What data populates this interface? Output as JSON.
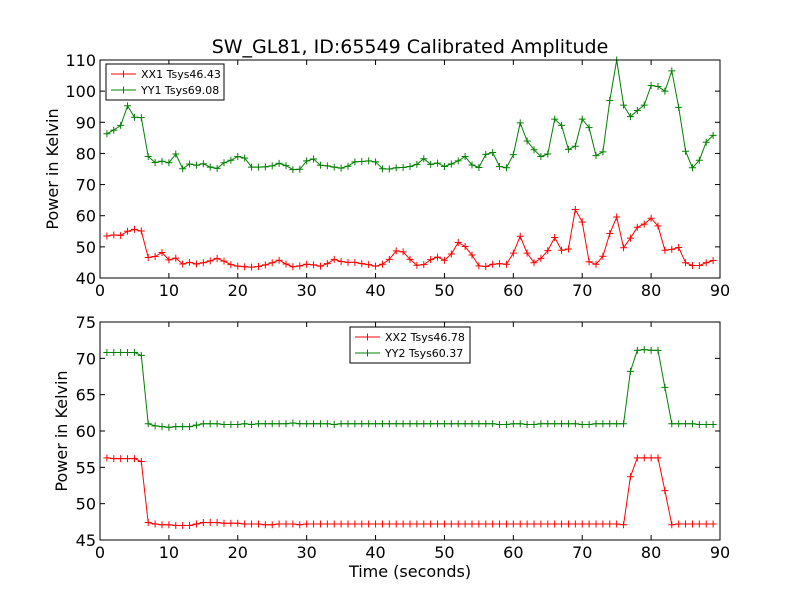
{
  "chart_data": [
    {
      "type": "line",
      "title": "SW_GL81, ID:65549 Calibrated Amplitude",
      "xlabel": "",
      "ylabel": "Power in Kelvin",
      "xlim": [
        0,
        90
      ],
      "ylim": [
        40,
        110
      ],
      "xticks": [
        "0",
        "10",
        "20",
        "30",
        "40",
        "50",
        "60",
        "70",
        "80",
        "90"
      ],
      "yticks": [
        "40",
        "50",
        "60",
        "70",
        "80",
        "90",
        "100",
        "110"
      ],
      "grid": false,
      "legend_position": "top-left",
      "x": [
        1,
        2,
        3,
        4,
        5,
        6,
        7,
        8,
        9,
        10,
        11,
        12,
        13,
        14,
        15,
        16,
        17,
        18,
        19,
        20,
        21,
        22,
        23,
        24,
        25,
        26,
        27,
        28,
        29,
        30,
        31,
        32,
        33,
        34,
        35,
        36,
        37,
        38,
        39,
        40,
        41,
        42,
        43,
        44,
        45,
        46,
        47,
        48,
        49,
        50,
        51,
        52,
        53,
        54,
        55,
        56,
        57,
        58,
        59,
        60,
        61,
        62,
        63,
        64,
        65,
        66,
        67,
        68,
        69,
        70,
        71,
        72,
        73,
        74,
        75,
        76,
        77,
        78,
        79,
        80,
        81,
        82,
        83,
        84,
        85,
        86,
        87,
        88,
        89
      ],
      "series": [
        {
          "name": "XX1 Tsys46.43",
          "color": "#ff0000",
          "values": [
            53.5,
            53.8,
            53.7,
            55.0,
            55.6,
            55.1,
            46.6,
            46.9,
            48.2,
            45.8,
            46.4,
            44.5,
            45.0,
            44.5,
            44.9,
            45.5,
            46.3,
            45.4,
            44.3,
            43.8,
            43.6,
            43.5,
            43.7,
            44.2,
            44.9,
            45.7,
            44.5,
            43.6,
            43.9,
            44.4,
            44.2,
            43.8,
            44.6,
            46.0,
            45.3,
            45.0,
            45.0,
            44.6,
            44.3,
            43.8,
            44.4,
            46.0,
            48.7,
            48.4,
            46.0,
            44.1,
            44.3,
            45.9,
            46.7,
            45.7,
            47.7,
            51.4,
            50.1,
            47.4,
            43.9,
            43.7,
            44.4,
            44.6,
            44.4,
            48.0,
            53.4,
            48.0,
            44.9,
            46.3,
            48.8,
            53.0,
            48.9,
            49.3,
            62.0,
            58.0,
            45.2,
            44.4,
            47.0,
            54.3,
            59.6,
            49.7,
            52.8,
            56.3,
            57.3,
            59.2,
            56.7,
            48.9,
            49.2,
            49.8,
            44.9,
            44.0,
            44.0,
            44.9,
            45.6
          ]
        },
        {
          "name": "YY1 Tsys69.08",
          "color": "#008000",
          "values": [
            86.3,
            87.5,
            89.0,
            95.3,
            91.6,
            91.5,
            79.0,
            77.1,
            77.5,
            77.0,
            79.8,
            75.1,
            76.6,
            76.2,
            76.7,
            75.6,
            75.2,
            77.0,
            77.8,
            79.0,
            78.5,
            75.6,
            75.6,
            75.7,
            76.0,
            76.8,
            76.1,
            74.8,
            74.9,
            77.6,
            78.2,
            76.2,
            76.0,
            75.6,
            75.3,
            75.9,
            77.3,
            77.4,
            77.6,
            77.3,
            75.1,
            75.0,
            75.4,
            75.5,
            75.8,
            76.5,
            78.3,
            76.5,
            76.9,
            75.8,
            76.6,
            77.6,
            79.0,
            76.3,
            75.5,
            79.7,
            80.3,
            75.8,
            75.4,
            79.6,
            89.8,
            84.0,
            81.2,
            79.0,
            79.8,
            91.0,
            89.0,
            81.3,
            82.3,
            91.0,
            88.3,
            79.3,
            80.5,
            97.0,
            110.0,
            95.5,
            91.8,
            93.8,
            95.5,
            101.8,
            101.5,
            100.0,
            106.5,
            94.8,
            80.7,
            75.4,
            77.8,
            83.6,
            85.8
          ]
        }
      ]
    },
    {
      "type": "line",
      "title": "",
      "xlabel": "Time (seconds)",
      "ylabel": "Power in Kelvin",
      "xlim": [
        0,
        90
      ],
      "ylim": [
        45,
        75
      ],
      "xticks": [
        "0",
        "10",
        "20",
        "30",
        "40",
        "50",
        "60",
        "70",
        "80",
        "90"
      ],
      "yticks": [
        "45",
        "50",
        "55",
        "60",
        "65",
        "70",
        "75"
      ],
      "grid": false,
      "legend_position": "top-center",
      "x": [
        1,
        2,
        3,
        4,
        5,
        6,
        7,
        8,
        9,
        10,
        11,
        12,
        13,
        14,
        15,
        16,
        17,
        18,
        19,
        20,
        21,
        22,
        23,
        24,
        25,
        26,
        27,
        28,
        29,
        30,
        31,
        32,
        33,
        34,
        35,
        36,
        37,
        38,
        39,
        40,
        41,
        42,
        43,
        44,
        45,
        46,
        47,
        48,
        49,
        50,
        51,
        52,
        53,
        54,
        55,
        56,
        57,
        58,
        59,
        60,
        61,
        62,
        63,
        64,
        65,
        66,
        67,
        68,
        69,
        70,
        71,
        72,
        73,
        74,
        75,
        76,
        77,
        78,
        79,
        80,
        81,
        82,
        83,
        84,
        85,
        86,
        87,
        88,
        89
      ],
      "series": [
        {
          "name": "XX2 Tsys46.78",
          "color": "#ff0000",
          "values": [
            56.3,
            56.2,
            56.2,
            56.2,
            56.2,
            55.8,
            47.4,
            47.2,
            47.1,
            47.1,
            47.0,
            47.0,
            47.0,
            47.2,
            47.4,
            47.4,
            47.4,
            47.3,
            47.3,
            47.3,
            47.2,
            47.2,
            47.2,
            47.1,
            47.1,
            47.2,
            47.2,
            47.2,
            47.1,
            47.2,
            47.2,
            47.2,
            47.2,
            47.2,
            47.2,
            47.2,
            47.2,
            47.2,
            47.2,
            47.2,
            47.2,
            47.2,
            47.2,
            47.2,
            47.2,
            47.2,
            47.2,
            47.2,
            47.2,
            47.2,
            47.2,
            47.2,
            47.2,
            47.2,
            47.2,
            47.2,
            47.2,
            47.2,
            47.2,
            47.2,
            47.2,
            47.2,
            47.2,
            47.2,
            47.2,
            47.2,
            47.2,
            47.2,
            47.2,
            47.2,
            47.2,
            47.2,
            47.2,
            47.2,
            47.2,
            47.1,
            53.7,
            56.3,
            56.3,
            56.3,
            56.3,
            51.8,
            47.1,
            47.2,
            47.2,
            47.2,
            47.2,
            47.2,
            47.2
          ]
        },
        {
          "name": "YY2 Tsys60.37",
          "color": "#008000",
          "values": [
            70.8,
            70.8,
            70.8,
            70.8,
            70.8,
            70.4,
            61.0,
            60.7,
            60.6,
            60.5,
            60.6,
            60.6,
            60.6,
            60.8,
            61.0,
            61.0,
            61.0,
            60.9,
            60.9,
            60.9,
            61.0,
            60.9,
            61.0,
            61.0,
            61.0,
            61.0,
            61.0,
            61.1,
            61.0,
            61.0,
            61.0,
            61.0,
            61.0,
            60.9,
            61.0,
            61.0,
            61.0,
            61.0,
            61.0,
            61.0,
            61.0,
            61.0,
            61.0,
            61.0,
            61.0,
            61.0,
            61.0,
            61.0,
            61.0,
            61.0,
            61.0,
            61.0,
            61.0,
            61.0,
            61.0,
            61.0,
            61.0,
            60.9,
            60.9,
            61.0,
            61.0,
            60.9,
            60.9,
            61.0,
            61.0,
            61.0,
            61.0,
            61.0,
            61.0,
            60.9,
            60.9,
            61.0,
            61.0,
            61.0,
            61.0,
            61.0,
            68.2,
            71.1,
            71.2,
            71.1,
            71.1,
            66.0,
            61.0,
            61.0,
            61.0,
            61.0,
            60.9,
            60.9,
            60.9
          ]
        }
      ]
    }
  ]
}
